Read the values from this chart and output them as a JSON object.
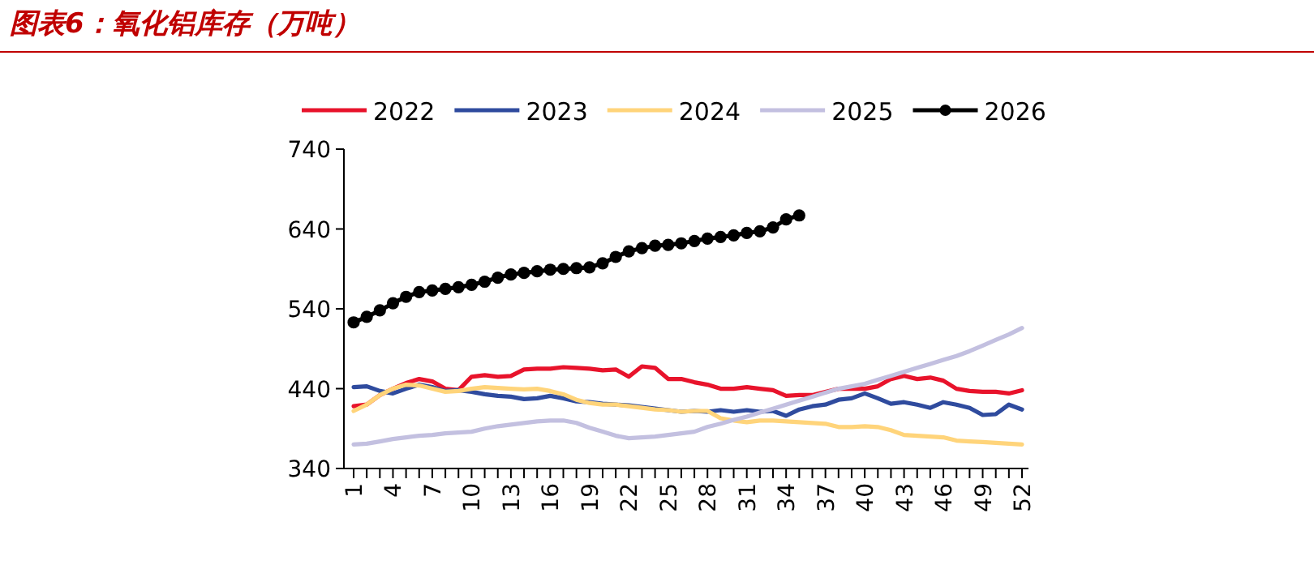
{
  "chart_data": {
    "type": "line",
    "title": "图表6：氧化铝库存（万吨）",
    "categories": [
      "1",
      null,
      null,
      "4",
      null,
      null,
      "7",
      null,
      null,
      "10",
      null,
      null,
      "13",
      null,
      null,
      "16",
      null,
      null,
      "19",
      null,
      null,
      "22",
      null,
      null,
      "25",
      null,
      null,
      "28",
      null,
      null,
      "31",
      null,
      null,
      "34",
      null,
      null,
      "37",
      null,
      null,
      "40",
      null,
      null,
      "43",
      null,
      null,
      "46",
      null,
      null,
      "49",
      null,
      null,
      "52"
    ],
    "ylim": [
      340,
      740
    ],
    "yticks": [
      340,
      440,
      540,
      640,
      740
    ],
    "grid": false,
    "legend": "top",
    "series": [
      {
        "name": "2022",
        "color": "#e8132b",
        "values": [
          418,
          420,
          432,
          440,
          447,
          452,
          449,
          440,
          438,
          455,
          457,
          455,
          456,
          464,
          465,
          465,
          467,
          466,
          465,
          463,
          464,
          455,
          468,
          466,
          452,
          452,
          448,
          445,
          440,
          440,
          442,
          440,
          438,
          431,
          432,
          432,
          436,
          440,
          440,
          440,
          443,
          452,
          456,
          452,
          454,
          450,
          440,
          437,
          436,
          436,
          434,
          438
        ]
      },
      {
        "name": "2023",
        "color": "#2f4b9e",
        "values": [
          442,
          443,
          437,
          434,
          440,
          445,
          442,
          437,
          438,
          436,
          433,
          431,
          430,
          427,
          428,
          431,
          428,
          424,
          423,
          421,
          420,
          419,
          417,
          415,
          413,
          411,
          412,
          411,
          413,
          411,
          413,
          411,
          412,
          406,
          414,
          418,
          420,
          426,
          428,
          434,
          428,
          421,
          423,
          420,
          416,
          423,
          420,
          416,
          407,
          408,
          420,
          414
        ]
      },
      {
        "name": "2024",
        "color": "#ffd47a",
        "values": [
          412,
          420,
          432,
          440,
          445,
          444,
          440,
          436,
          437,
          440,
          442,
          441,
          440,
          439,
          440,
          437,
          433,
          426,
          422,
          420,
          420,
          418,
          416,
          414,
          413,
          411,
          412,
          412,
          403,
          400,
          398,
          400,
          400,
          399,
          398,
          397,
          396,
          392,
          392,
          393,
          392,
          388,
          382,
          381,
          380,
          379,
          375,
          374,
          373,
          372,
          371,
          370
        ]
      },
      {
        "name": "2025",
        "color": "#c3c0e0",
        "values": [
          370,
          371,
          374,
          377,
          379,
          381,
          382,
          384,
          385,
          386,
          390,
          393,
          395,
          397,
          399,
          400,
          400,
          397,
          391,
          386,
          381,
          378,
          379,
          380,
          382,
          384,
          386,
          392,
          396,
          401,
          405,
          410,
          415,
          420,
          425,
          430,
          435,
          440,
          443,
          446,
          451,
          456,
          461,
          466,
          471,
          476,
          481,
          487,
          494,
          501,
          508,
          516
        ]
      },
      {
        "name": "2026",
        "color": "#000000",
        "marker": "circle",
        "values": [
          523,
          530,
          538,
          547,
          555,
          561,
          563,
          565,
          567,
          570,
          574,
          579,
          583,
          585,
          587,
          589,
          590,
          591,
          592,
          597,
          605,
          612,
          616,
          619,
          620,
          622,
          625,
          628,
          630,
          632,
          635,
          637,
          642,
          652,
          657,
          null,
          null,
          null,
          null,
          null,
          null,
          null,
          null,
          null,
          null,
          null,
          null,
          null,
          null,
          null,
          null,
          null
        ]
      }
    ]
  }
}
